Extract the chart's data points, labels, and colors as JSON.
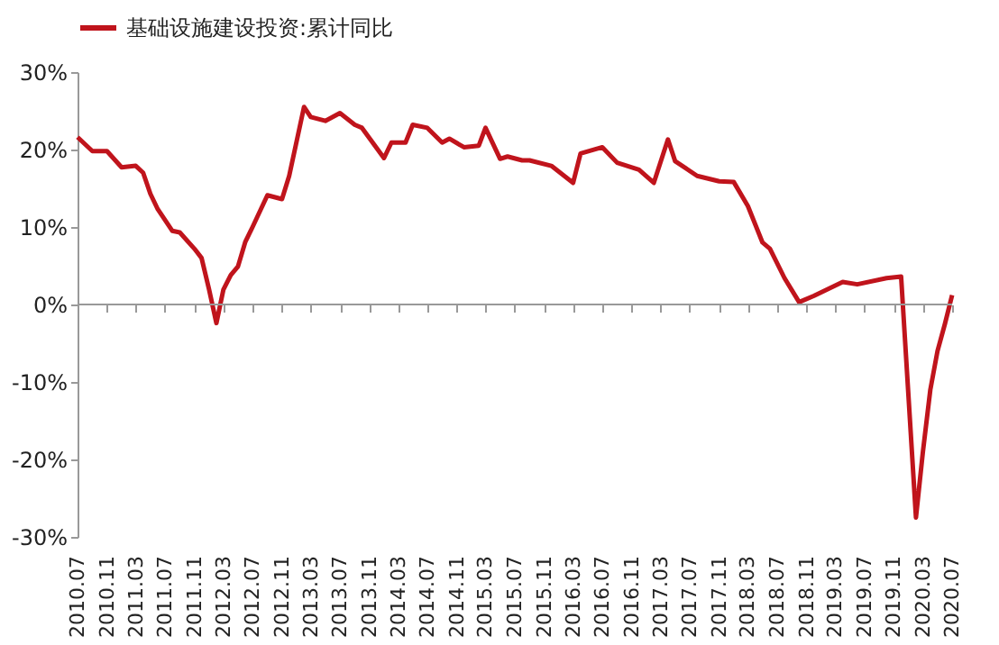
{
  "chart_data": {
    "type": "line",
    "x": [
      "2010-07",
      "2010-09",
      "2010-11",
      "2011-01",
      "2011-03",
      "2011-04",
      "2011-05",
      "2011-06",
      "2011-08",
      "2011-09",
      "2011-11",
      "2011-12",
      "2012-01",
      "2012-02",
      "2012-03",
      "2012-04",
      "2012-05",
      "2012-06",
      "2012-07",
      "2012-09",
      "2012-11",
      "2012-12",
      "2013-02",
      "2013-03",
      "2013-05",
      "2013-07",
      "2013-09",
      "2013-10",
      "2014-01",
      "2014-02",
      "2014-04",
      "2014-05",
      "2014-07",
      "2014-09",
      "2014-10",
      "2014-12",
      "2015-02",
      "2015-03",
      "2015-05",
      "2015-06",
      "2015-08",
      "2015-09",
      "2015-12",
      "2016-03",
      "2016-04",
      "2016-07",
      "2016-09",
      "2016-12",
      "2017-02",
      "2017-04",
      "2017-05",
      "2017-08",
      "2017-11",
      "2018-01",
      "2018-03",
      "2018-05",
      "2018-06",
      "2018-08",
      "2018-10",
      "2018-12",
      "2019-04",
      "2019-06",
      "2019-10",
      "2019-12",
      "2020-02",
      "2020-03",
      "2020-04",
      "2020-05",
      "2020-06",
      "2020-07"
    ],
    "series": [
      {
        "name": "基础设施建设投资:累计同比",
        "color": "#c0141c",
        "values": [
          21.6,
          19.8,
          19.8,
          17.7,
          17.9,
          17.0,
          14.3,
          12.3,
          9.5,
          9.3,
          7.2,
          6.0,
          2.0,
          -2.4,
          1.9,
          3.8,
          4.9,
          8.1,
          10.0,
          14.1,
          13.6,
          16.6,
          25.5,
          24.2,
          23.7,
          24.7,
          23.2,
          22.8,
          18.9,
          20.9,
          20.9,
          23.2,
          22.8,
          20.9,
          21.4,
          20.3,
          20.5,
          22.8,
          18.8,
          19.1,
          18.6,
          18.6,
          17.9,
          15.7,
          19.5,
          20.3,
          18.3,
          17.4,
          15.7,
          21.3,
          18.5,
          16.6,
          15.9,
          15.8,
          12.7,
          8.0,
          7.2,
          3.4,
          0.3,
          1.1,
          2.9,
          2.6,
          3.4,
          3.6,
          -27.5,
          -19.0,
          -11.0,
          -6.0,
          -2.5,
          1.2
        ]
      }
    ],
    "xlim": [
      "2010-07",
      "2020-07"
    ],
    "xticks": [
      {
        "value": "2010-07",
        "label": "2010.07"
      },
      {
        "value": "2010-11",
        "label": "2010.11"
      },
      {
        "value": "2011-03",
        "label": "2011.03"
      },
      {
        "value": "2011-07",
        "label": "2011.07"
      },
      {
        "value": "2011-11",
        "label": "2011.11"
      },
      {
        "value": "2012-03",
        "label": "2012.03"
      },
      {
        "value": "2012-07",
        "label": "2012.07"
      },
      {
        "value": "2012-11",
        "label": "2012.11"
      },
      {
        "value": "2013-03",
        "label": "2013.03"
      },
      {
        "value": "2013-07",
        "label": "2013.07"
      },
      {
        "value": "2013-11",
        "label": "2013.11"
      },
      {
        "value": "2014-03",
        "label": "2014.03"
      },
      {
        "value": "2014-07",
        "label": "2014.07"
      },
      {
        "value": "2014-11",
        "label": "2014.11"
      },
      {
        "value": "2015-03",
        "label": "2015.03"
      },
      {
        "value": "2015-07",
        "label": "2015.07"
      },
      {
        "value": "2015-11",
        "label": "2015.11"
      },
      {
        "value": "2016-03",
        "label": "2016.03"
      },
      {
        "value": "2016-07",
        "label": "2016.07"
      },
      {
        "value": "2016-11",
        "label": "2016.11"
      },
      {
        "value": "2017-03",
        "label": "2017.03"
      },
      {
        "value": "2017-07",
        "label": "2017.07"
      },
      {
        "value": "2017-11",
        "label": "2017.11"
      },
      {
        "value": "2018-03",
        "label": "2018.03"
      },
      {
        "value": "2018-07",
        "label": "2018.07"
      },
      {
        "value": "2018-11",
        "label": "2018.11"
      },
      {
        "value": "2019-03",
        "label": "2019.03"
      },
      {
        "value": "2019-07",
        "label": "2019.07"
      },
      {
        "value": "2019-11",
        "label": "2019.11"
      },
      {
        "value": "2020-03",
        "label": "2020.03"
      },
      {
        "value": "2020-07",
        "label": "2020.07"
      }
    ],
    "ylim": [
      -30,
      30
    ],
    "yticks": [
      {
        "value": -30,
        "label": "-30%"
      },
      {
        "value": -20,
        "label": "-20%"
      },
      {
        "value": -10,
        "label": "-10%"
      },
      {
        "value": 0,
        "label": "0%"
      },
      {
        "value": 10,
        "label": "10%"
      },
      {
        "value": 20,
        "label": "20%"
      },
      {
        "value": 30,
        "label": "30%"
      }
    ],
    "ref_lines": [
      {
        "axis": "y",
        "value": 0,
        "color": "#999999",
        "line_style": "solid"
      }
    ],
    "legend": "top",
    "grid": false,
    "marker": "none",
    "line_style": "solid"
  }
}
